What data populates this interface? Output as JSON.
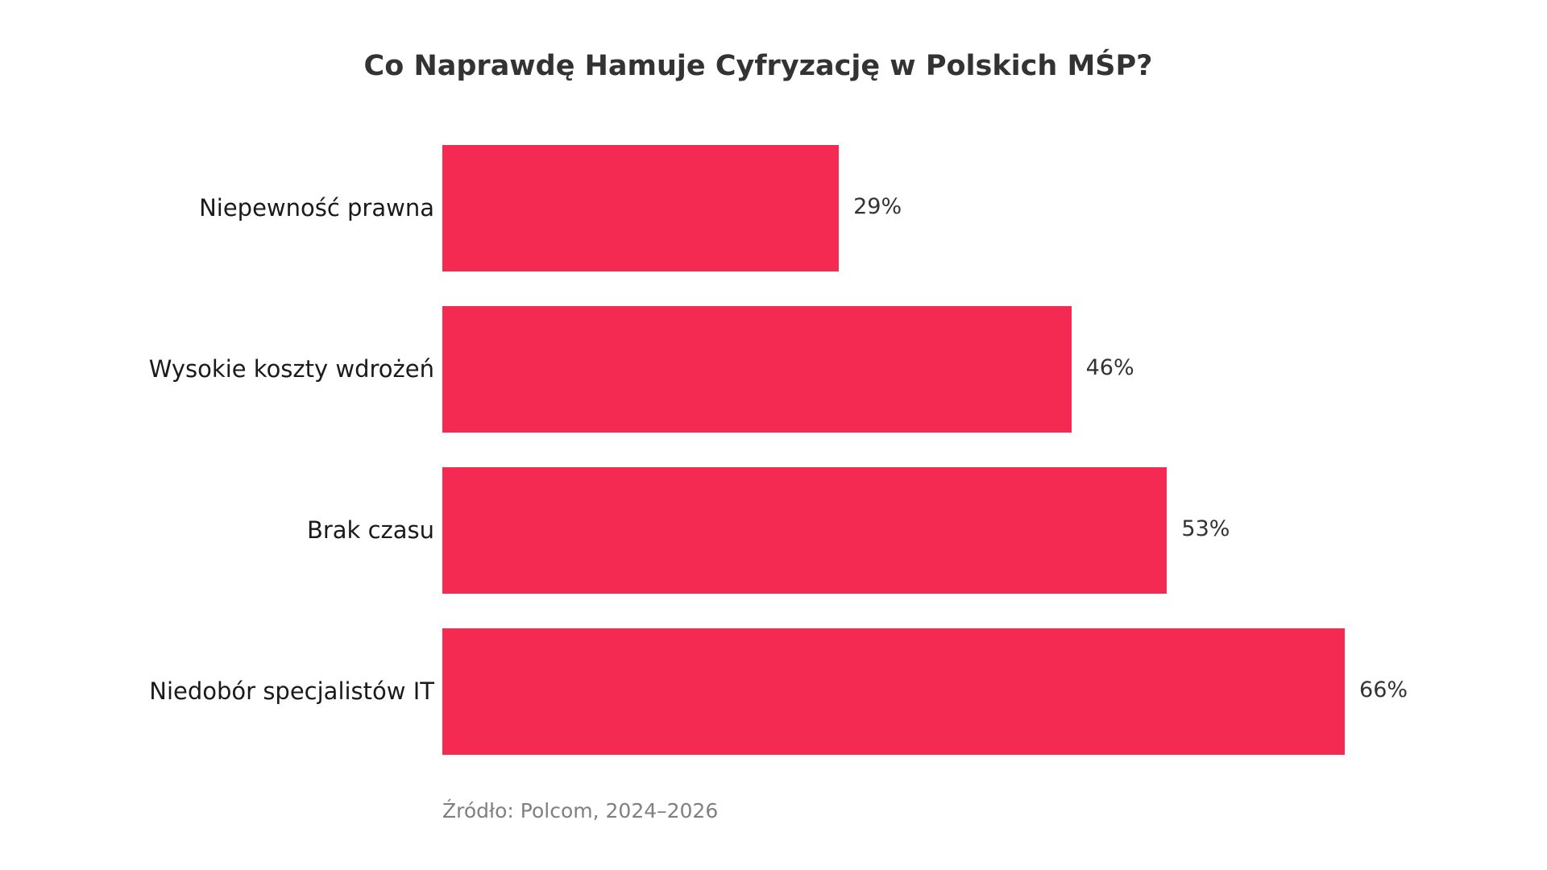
{
  "title": "Co Naprawdę Hamuje Cyfryzację w Polskich MŚP?",
  "source": "Źródło: Polcom, 2024–2026",
  "colors": {
    "bar": "#F42A53",
    "title": "#333333",
    "label": "#1a1a1a",
    "value": "#333333",
    "source": "#808080",
    "background": "#FFFFFF"
  },
  "bars": [
    {
      "label": "Niepewność prawna",
      "value": 29,
      "value_label": "29%"
    },
    {
      "label": "Wysokie koszty wdrożeń",
      "value": 46,
      "value_label": "46%"
    },
    {
      "label": "Brak czasu",
      "value": 53,
      "value_label": "53%"
    },
    {
      "label": "Niedobór specjalistów IT",
      "value": 66,
      "value_label": "66%"
    }
  ],
  "chart_data": {
    "type": "bar",
    "orientation": "horizontal",
    "title": "Co Naprawdę Hamuje Cyfryzację w Polskich MŚP?",
    "categories": [
      "Niepewność prawna",
      "Wysokie koszty wdrożeń",
      "Brak czasu",
      "Niedobór specjalistów IT"
    ],
    "values": [
      29,
      46,
      53,
      66
    ],
    "value_labels": [
      "29%",
      "46%",
      "53%",
      "66%"
    ],
    "xlabel": "",
    "ylabel": "",
    "unit": "%",
    "xlim": [
      0,
      70
    ],
    "grid": false,
    "x_axis_visible": false,
    "legend": null,
    "annotations": [
      "Źródło: Polcom, 2024–2026"
    ],
    "bar_color": "#F42A53"
  }
}
